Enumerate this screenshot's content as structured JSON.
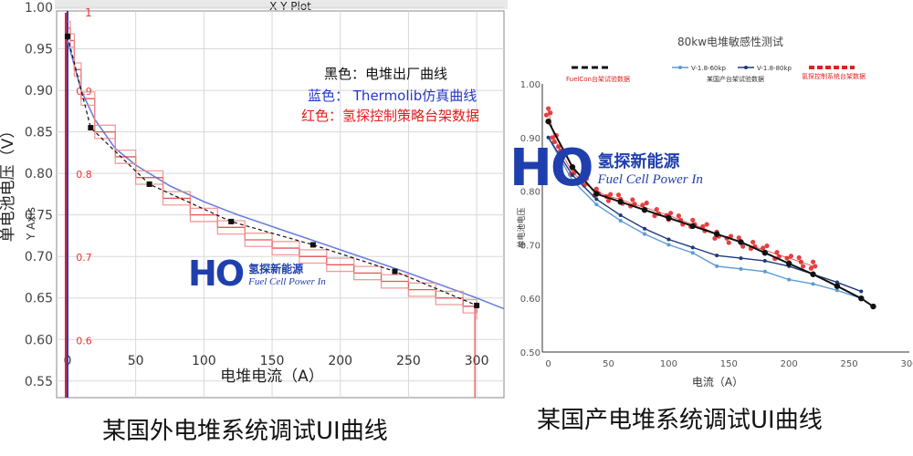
{
  "colors": {
    "factory_black": "#111111",
    "sim_blue": "#6a7fe0",
    "rig_red": "#e23a3a",
    "rig_red_light": "#f08a8a",
    "right_light_blue": "#5b9bd5",
    "right_navy": "#1f3a7a",
    "right_red": "#e02020",
    "logo_blue": "#1f3fae"
  },
  "left_panel": {
    "window_title": "X Y Plot",
    "y_axis_outer_label": "单电池电压（V）",
    "y_axis_inner_label": "Y Axis",
    "x_axis_label": "电堆电流（A）",
    "legend": {
      "black": "黑色：电堆出厂曲线",
      "blue": "蓝色：  Thermolib仿真曲线",
      "red": "红色：氢探控制策略台架数据"
    },
    "caption": "某国外电堆系统调试UI曲线",
    "logo": {
      "mark": "HO",
      "cn": "氢探新能源",
      "en": "Fuel Cell Power In"
    },
    "y_tick_labels_outer": [
      "1.00",
      "0.95",
      "0.90",
      "0.85",
      "0.80",
      "0.75",
      "0.70",
      "0.65",
      "0.60",
      "0.55"
    ],
    "y_tick_labels_inner": [
      "0.9",
      "0.8",
      "0.7",
      "0.6"
    ],
    "x_tick_labels": [
      "0",
      "50",
      "100",
      "150",
      "200",
      "250",
      "300"
    ],
    "top_marker": "1"
  },
  "right_panel": {
    "title": "80kw电堆敏感性测试",
    "legend_items": [
      {
        "key": "fuelcon",
        "label": "FuelCon台架试验数据",
        "style": "black-dash"
      },
      {
        "key": "v18_60",
        "label": "V-1.8-60kp",
        "style": "light-blue-line"
      },
      {
        "key": "v18_80",
        "label": "V-1.8-80kp",
        "style": "navy-line"
      },
      {
        "key": "factory",
        "label": "某国产台架试验数据",
        "style": "text"
      },
      {
        "key": "hydrogen",
        "label": "氢探控制系统台架数据",
        "style": "red-dash"
      }
    ],
    "y_axis_label": "单电池电压",
    "x_axis_label": "电流（A）",
    "caption": "某国产电堆系统调试UI曲线",
    "logo": {
      "mark": "HO",
      "cn": "氢探新能源",
      "en": "Fuel Cell Power In"
    },
    "y_tick_labels": [
      "1.00",
      "0.90",
      "0.80",
      "0.70",
      "0.60",
      "0.50"
    ],
    "x_tick_labels": [
      "0",
      "50",
      "100",
      "150",
      "200",
      "250",
      "300"
    ]
  },
  "chart_data": [
    {
      "type": "line",
      "title": "X Y Plot",
      "xlabel": "电堆电流（A）",
      "ylabel": "单电池电压（V）",
      "xlim": [
        -8,
        320
      ],
      "ylim": [
        0.53,
        1.0
      ],
      "grid": true,
      "series": [
        {
          "name": "黑色：电堆出厂曲线",
          "x": [
            0,
            17,
            60,
            120,
            180,
            240,
            300
          ],
          "y": [
            0.965,
            0.855,
            0.787,
            0.742,
            0.714,
            0.682,
            0.641
          ]
        },
        {
          "name": "蓝色：  Thermolib仿真曲线",
          "x": [
            0,
            5,
            10,
            20,
            35,
            50,
            75,
            100,
            125,
            150,
            175,
            200,
            225,
            250,
            275,
            300,
            320
          ],
          "y": [
            0.96,
            0.93,
            0.9,
            0.865,
            0.83,
            0.81,
            0.785,
            0.766,
            0.75,
            0.736,
            0.722,
            0.708,
            0.694,
            0.68,
            0.665,
            0.65,
            0.637
          ]
        },
        {
          "name": "红色：氢探控制策略台架数据",
          "x": [
            0,
            2,
            5,
            10,
            20,
            35,
            50,
            70,
            90,
            110,
            130,
            150,
            170,
            190,
            210,
            230,
            250,
            270,
            290,
            300
          ],
          "y": [
            0.975,
            0.96,
            0.925,
            0.89,
            0.85,
            0.82,
            0.795,
            0.77,
            0.75,
            0.735,
            0.72,
            0.71,
            0.7,
            0.69,
            0.68,
            0.67,
            0.66,
            0.65,
            0.64,
            0.632
          ]
        }
      ]
    },
    {
      "type": "line",
      "title": "80kw电堆敏感性测试",
      "xlabel": "电流（A）",
      "ylabel": "单电池电压",
      "xlim": [
        -5,
        300
      ],
      "ylim": [
        0.5,
        1.0
      ],
      "grid": false,
      "series": [
        {
          "name": "V-1.8-60kp",
          "x": [
            0,
            20,
            40,
            60,
            80,
            100,
            120,
            140,
            160,
            180,
            200,
            220,
            240,
            260,
            270
          ],
          "y": [
            0.9,
            0.82,
            0.775,
            0.745,
            0.72,
            0.7,
            0.685,
            0.66,
            0.655,
            0.65,
            0.635,
            0.627,
            0.615,
            0.6,
            0.585
          ]
        },
        {
          "name": "V-1.8-80kp",
          "x": [
            0,
            20,
            40,
            60,
            80,
            100,
            120,
            140,
            160,
            180,
            200,
            220,
            240,
            260
          ],
          "y": [
            0.9,
            0.83,
            0.785,
            0.755,
            0.73,
            0.71,
            0.695,
            0.68,
            0.675,
            0.67,
            0.66,
            0.645,
            0.63,
            0.613
          ]
        },
        {
          "name": "FuelCon台架试验数据",
          "x": [
            0,
            20,
            40,
            60,
            80,
            100,
            120,
            140,
            160,
            180,
            200,
            220,
            240,
            260,
            270
          ],
          "y": [
            0.93,
            0.845,
            0.795,
            0.78,
            0.765,
            0.75,
            0.735,
            0.72,
            0.705,
            0.685,
            0.665,
            0.645,
            0.623,
            0.6,
            0.585
          ]
        },
        {
          "name": "氢探控制系统台架数据",
          "x": [
            0,
            5,
            10,
            20,
            30,
            40,
            50,
            60,
            70,
            80,
            90,
            100,
            110,
            120,
            130,
            140,
            150,
            160,
            170,
            180,
            190,
            200,
            210,
            220
          ],
          "y": [
            0.95,
            0.9,
            0.875,
            0.835,
            0.815,
            0.8,
            0.79,
            0.785,
            0.776,
            0.77,
            0.762,
            0.755,
            0.746,
            0.738,
            0.73,
            0.72,
            0.712,
            0.705,
            0.697,
            0.69,
            0.682,
            0.675,
            0.668,
            0.66
          ]
        }
      ]
    }
  ]
}
